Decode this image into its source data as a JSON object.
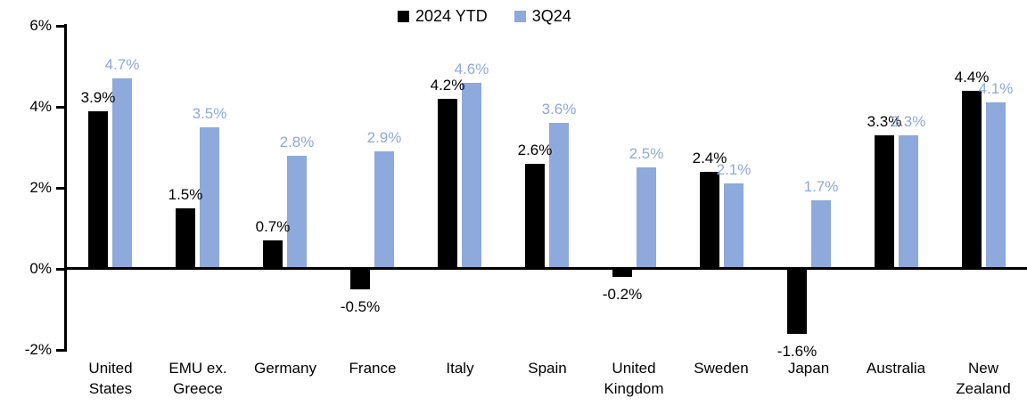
{
  "chart_data": {
    "type": "bar",
    "title": "",
    "categories": [
      [
        "United",
        "States"
      ],
      [
        "EMU ex.",
        "Greece"
      ],
      [
        "Germany"
      ],
      [
        "France"
      ],
      [
        "Italy"
      ],
      [
        "Spain"
      ],
      [
        "United",
        "Kingdom"
      ],
      [
        "Sweden"
      ],
      [
        "Japan"
      ],
      [
        "Australia"
      ],
      [
        "New",
        "Zealand"
      ]
    ],
    "series": [
      {
        "name": "2024 YTD",
        "color": "#000000",
        "values": [
          3.9,
          1.5,
          0.7,
          -0.5,
          4.2,
          2.6,
          -0.2,
          2.4,
          -1.6,
          3.3,
          4.4
        ],
        "labels": [
          "3.9%",
          "1.5%",
          "0.7%",
          "-0.5%",
          "4.2%",
          "2.6%",
          "-0.2%",
          "2.4%",
          "-1.6%",
          "3.3%",
          "4.4%"
        ]
      },
      {
        "name": "3Q24",
        "color": "#8EA9DB",
        "values": [
          4.7,
          3.5,
          2.8,
          2.9,
          4.6,
          3.6,
          2.5,
          2.1,
          1.7,
          3.3,
          4.1
        ],
        "labels": [
          "4.7%",
          "3.5%",
          "2.8%",
          "2.9%",
          "4.6%",
          "3.6%",
          "2.5%",
          "2.1%",
          "1.7%",
          "3.3%",
          "4.1%"
        ]
      }
    ],
    "xlabel": "",
    "ylabel": "",
    "ylim": [
      -2,
      6
    ],
    "y_ticks": [
      {
        "value": 6,
        "label": "6%"
      },
      {
        "value": 4,
        "label": "4%"
      },
      {
        "value": 2,
        "label": "2%"
      },
      {
        "value": 0,
        "label": "0%"
      },
      {
        "value": -2,
        "label": "-2%"
      }
    ],
    "grid": false,
    "data_labels": true,
    "legend_position": "top-center",
    "axis_color": "#000000",
    "background_color": "#FFFFFF"
  }
}
